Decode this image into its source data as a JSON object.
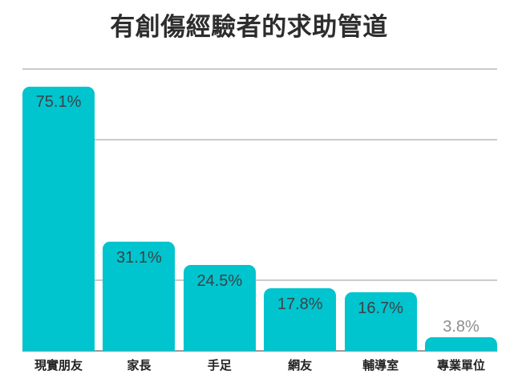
{
  "title": "有創傷經驗者的求助管道",
  "colors": {
    "background": "#ffffff",
    "bar": "#00C4CE",
    "title_text": "#2d2d2d",
    "value_label_inside": "#3c4246",
    "value_label_outside": "#8e8e8e",
    "category_label": "#222222",
    "gridline": "#cbcbcb",
    "baseline": "#9c9c9c"
  },
  "chart_data": {
    "type": "bar",
    "title": "有創傷經驗者的求助管道",
    "categories": [
      "現實朋友",
      "家長",
      "手足",
      "網友",
      "輔導室",
      "專業單位"
    ],
    "values": [
      75.1,
      31.1,
      24.5,
      17.8,
      16.7,
      3.8
    ],
    "value_labels": [
      "75.1%",
      "31.1%",
      "24.5%",
      "17.8%",
      "16.7%",
      "3.8%"
    ],
    "unit": "%",
    "xlabel": "",
    "ylabel": "",
    "ylim": [
      0,
      80
    ],
    "gridline_values": [
      80,
      60,
      20
    ],
    "grid": "horizontal",
    "legend": "none",
    "value_label_placement": "inside-top, outside-above when bar too short"
  }
}
